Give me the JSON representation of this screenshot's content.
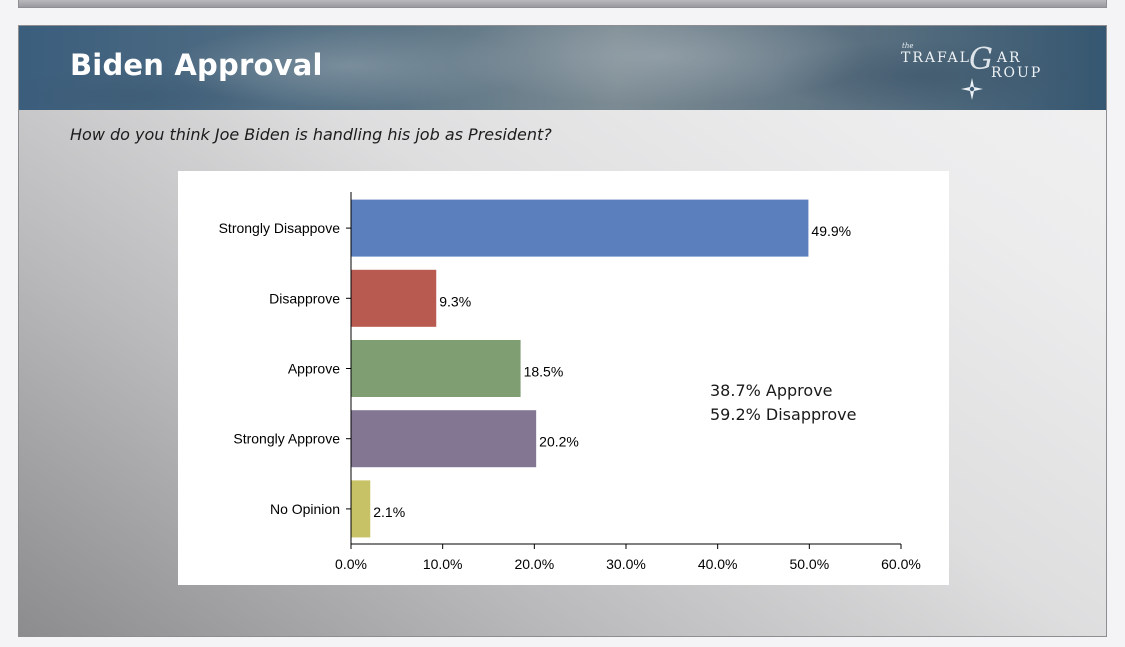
{
  "slide": {
    "title": "Biden Approval",
    "question": "How do you think Joe Biden is handling his job as President?"
  },
  "logo": {
    "the": "the",
    "line1": "TRAFAL",
    "letter": "G",
    "line1_end": "AR",
    "line2": "ROUP"
  },
  "summary": {
    "approve": "38.7% Approve",
    "disapprove": "59.2% Disapprove"
  },
  "chart_data": {
    "type": "bar",
    "orientation": "horizontal",
    "title": "",
    "xlabel": "",
    "ylabel": "",
    "xlim": [
      0,
      60
    ],
    "x_ticks": [
      "0.0%",
      "10.0%",
      "20.0%",
      "30.0%",
      "40.0%",
      "50.0%",
      "60.0%"
    ],
    "x_tick_values": [
      0,
      10,
      20,
      30,
      40,
      50,
      60
    ],
    "categories": [
      "Strongly Disappove",
      "Disapprove",
      "Approve",
      "Strongly Approve",
      "No Opinion"
    ],
    "values": [
      49.9,
      9.3,
      18.5,
      20.2,
      2.1
    ],
    "value_labels": [
      "49.9%",
      "9.3%",
      "18.5%",
      "20.2%",
      "2.1%"
    ],
    "colors": [
      "#5b7fbd",
      "#b85a50",
      "#7f9f72",
      "#837693",
      "#c6c265"
    ],
    "grid": false,
    "legend": "none"
  }
}
